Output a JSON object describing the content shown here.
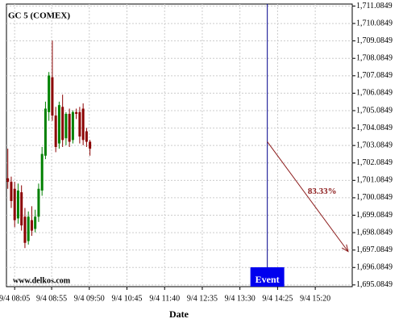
{
  "chart_data": {
    "type": "candlestick",
    "title": "GC 5 (COMEX)",
    "watermark": "www.delkos.com",
    "x_label": "Date",
    "x": [
      475,
      480,
      485,
      490,
      495,
      500,
      505,
      510,
      515,
      520,
      525,
      530,
      535,
      540,
      545,
      550,
      555,
      560,
      565,
      570,
      575,
      580,
      585,
      590,
      595
    ],
    "open": [
      1701.2,
      1701.0,
      1700.6,
      1698.9,
      1700.4,
      1699.0,
      1697.6,
      1698.8,
      1698.3,
      1699.0,
      1700.5,
      1702.5,
      1705.0,
      1707.0,
      1704.8,
      1703.2,
      1705.3,
      1703.5,
      1704.9,
      1703.4,
      1705.0,
      1705.0,
      1705.2,
      1703.9,
      1703.3
    ],
    "high": [
      1702.9,
      1701.3,
      1701.0,
      1700.9,
      1700.8,
      1699.5,
      1699.3,
      1699.6,
      1699.4,
      1700.9,
      1703.0,
      1705.6,
      1707.3,
      1709.1,
      1705.3,
      1705.6,
      1706.0,
      1705.0,
      1705.2,
      1705.1,
      1705.2,
      1705.3,
      1705.5,
      1704.1,
      1703.4
    ],
    "low": [
      1700.6,
      1699.5,
      1698.4,
      1698.6,
      1698.2,
      1697.2,
      1697.4,
      1697.9,
      1698.1,
      1698.7,
      1700.2,
      1702.3,
      1704.5,
      1704.5,
      1702.7,
      1702.9,
      1703.0,
      1703.1,
      1703.0,
      1703.2,
      1704.6,
      1703.2,
      1703.1,
      1703.0,
      1702.5
    ],
    "close": [
      1701.0,
      1699.9,
      1698.8,
      1700.5,
      1698.5,
      1697.5,
      1699.0,
      1698.2,
      1699.0,
      1700.6,
      1702.6,
      1705.2,
      1707.1,
      1704.8,
      1703.0,
      1705.4,
      1703.4,
      1704.9,
      1703.3,
      1705.0,
      1704.9,
      1703.6,
      1703.4,
      1703.3,
      1702.9
    ],
    "up_color": "#008000",
    "down_color": "#8b0000",
    "xlim": [
      473,
      978
    ],
    "ylim": [
      1694.9849,
      1711.2
    ],
    "xticks": [
      {
        "value": 485,
        "label": "9/4 08:05"
      },
      {
        "value": 539,
        "label": "9/4 08:55"
      },
      {
        "value": 594,
        "label": "9/4 09:50"
      },
      {
        "value": 649,
        "label": "9/4 10:45"
      },
      {
        "value": 704,
        "label": "9/4 11:40"
      },
      {
        "value": 759,
        "label": "9/4 12:35"
      },
      {
        "value": 814,
        "label": "9/4 13:30"
      },
      {
        "value": 869,
        "label": "9/4 14:25"
      },
      {
        "value": 924,
        "label": "9/4 15:20"
      }
    ],
    "yticks": [
      {
        "value": 1695.0849,
        "label": "1,695.0849"
      },
      {
        "value": 1696.0849,
        "label": "1,696.0849"
      },
      {
        "value": 1697.0849,
        "label": "1,697.0849"
      },
      {
        "value": 1698.0849,
        "label": "1,698.0849"
      },
      {
        "value": 1699.0849,
        "label": "1,699.0849"
      },
      {
        "value": 1700.0849,
        "label": "1,700.0849"
      },
      {
        "value": 1701.0849,
        "label": "1,701.0849"
      },
      {
        "value": 1702.0849,
        "label": "1,702.0849"
      },
      {
        "value": 1703.0849,
        "label": "1,703.0849"
      },
      {
        "value": 1704.0849,
        "label": "1,704.0849"
      },
      {
        "value": 1705.0849,
        "label": "1,705.0849"
      },
      {
        "value": 1706.0849,
        "label": "1,706.0849"
      },
      {
        "value": 1707.0849,
        "label": "1,707.0849"
      },
      {
        "value": 1708.0849,
        "label": "1,708.0849"
      },
      {
        "value": 1709.0849,
        "label": "1,709.0849"
      },
      {
        "value": 1710.0849,
        "label": "1,710.0849"
      },
      {
        "value": 1711.0849,
        "label": "1,711.0849"
      }
    ],
    "grid": true,
    "event": {
      "label": "Event",
      "x": 854,
      "color": "#0000ee"
    },
    "arrow": {
      "text": "83.33%",
      "x": [
        854,
        972
      ],
      "y": [
        1703.3,
        1697.0
      ],
      "color": "#8b1a1a"
    }
  }
}
